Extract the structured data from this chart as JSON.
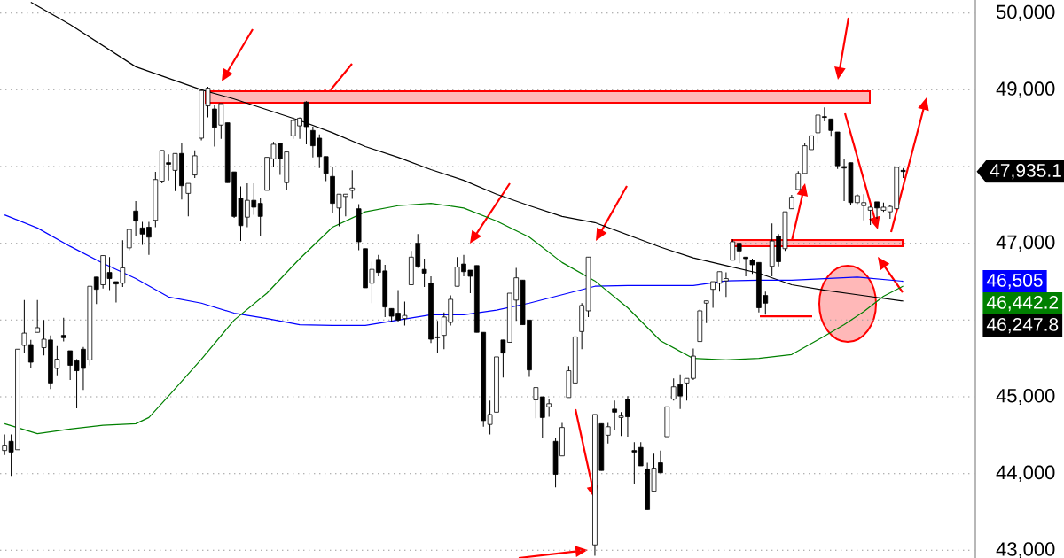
{
  "chart_data": {
    "type": "candlestick",
    "categories": [
      null,
      null,
      null,
      null,
      null,
      null,
      null,
      null,
      null,
      null,
      null,
      null,
      null,
      null,
      null,
      null,
      null,
      null,
      null,
      null,
      null,
      null,
      null,
      null,
      null,
      null,
      null,
      null,
      null,
      null,
      null,
      null,
      null,
      null,
      null,
      null,
      null,
      null,
      null,
      null,
      null,
      null,
      null,
      null,
      null,
      null,
      null,
      null,
      null,
      null,
      null,
      null,
      null,
      null,
      null,
      null,
      null,
      null,
      null,
      null,
      null,
      null,
      null,
      null,
      null,
      null,
      null,
      null,
      null,
      null,
      null,
      null,
      null,
      null,
      null,
      null,
      null,
      null,
      null,
      null,
      null,
      null,
      null,
      null,
      null,
      null,
      null,
      null,
      null,
      null,
      null,
      null,
      null,
      null,
      null,
      null,
      null,
      null,
      null,
      null,
      null,
      null,
      null,
      null,
      null,
      null,
      null,
      null,
      null,
      null,
      null,
      null,
      null,
      null,
      null,
      null,
      null,
      null,
      null,
      null,
      null,
      null,
      null,
      null,
      null,
      null,
      null,
      null,
      null,
      null,
      null,
      null,
      null,
      null,
      null,
      null,
      null,
      null
    ],
    "ohlc": [
      [
        44300,
        44510,
        44240,
        44370
      ],
      [
        44420,
        44510,
        43970,
        44280
      ],
      [
        44310,
        45620,
        44310,
        45620
      ],
      [
        45670,
        46260,
        45570,
        45830
      ],
      [
        45680,
        45740,
        45370,
        45450
      ],
      [
        45840,
        46260,
        45840,
        45900
      ],
      [
        45640,
        46000,
        45540,
        45750
      ],
      [
        45740,
        45800,
        45100,
        45180
      ],
      [
        45370,
        45660,
        45280,
        45490
      ],
      [
        45800,
        46030,
        45720,
        45770
      ],
      [
        45600,
        45600,
        45220,
        45410
      ],
      [
        45470,
        45490,
        44850,
        45340
      ],
      [
        45620,
        45650,
        45090,
        45370
      ],
      [
        45480,
        46440,
        45410,
        46440
      ],
      [
        46560,
        46560,
        46210,
        46400
      ],
      [
        46460,
        46840,
        46410,
        46840
      ],
      [
        46620,
        46820,
        46390,
        46540
      ],
      [
        46500,
        46500,
        46230,
        46470
      ],
      [
        46480,
        47040,
        46430,
        46680
      ],
      [
        46940,
        47180,
        46910,
        47180
      ],
      [
        47420,
        47550,
        47100,
        47290
      ],
      [
        47200,
        47280,
        46980,
        47120
      ],
      [
        47210,
        47280,
        46850,
        47080
      ],
      [
        47300,
        47930,
        47210,
        47830
      ],
      [
        47810,
        48210,
        47780,
        48210
      ],
      [
        48050,
        48160,
        47820,
        48030
      ],
      [
        47950,
        48170,
        47680,
        48170
      ],
      [
        48170,
        48300,
        47570,
        47750
      ],
      [
        47650,
        47780,
        47350,
        47780
      ],
      [
        47890,
        48210,
        47850,
        48140
      ],
      [
        48370,
        48990,
        48340,
        48990
      ],
      [
        48790,
        49040,
        48640,
        49020
      ],
      [
        48750,
        48800,
        48260,
        48510
      ],
      [
        48540,
        48820,
        48360,
        48820
      ],
      [
        48570,
        48570,
        47790,
        47790
      ],
      [
        47930,
        47930,
        47330,
        47350
      ],
      [
        47590,
        47740,
        47030,
        47230
      ],
      [
        47340,
        47780,
        47210,
        47560
      ],
      [
        47560,
        47780,
        47370,
        47470
      ],
      [
        47520,
        47590,
        47090,
        47350
      ],
      [
        47690,
        48120,
        47690,
        48120
      ],
      [
        48100,
        48320,
        47990,
        48290
      ],
      [
        48300,
        48300,
        47890,
        48100
      ],
      [
        47790,
        48190,
        47700,
        48190
      ],
      [
        48400,
        48640,
        48360,
        48600
      ],
      [
        48530,
        48640,
        48360,
        48630
      ],
      [
        48840,
        48850,
        48290,
        48520
      ],
      [
        48470,
        48520,
        48120,
        48270
      ],
      [
        48370,
        48420,
        47980,
        48130
      ],
      [
        48130,
        48130,
        47810,
        47910
      ],
      [
        47870,
        47990,
        47400,
        47520
      ],
      [
        47460,
        47640,
        47220,
        47640
      ],
      [
        47610,
        47640,
        47350,
        47640
      ],
      [
        47690,
        47950,
        47580,
        47720
      ],
      [
        47450,
        47510,
        46910,
        47020
      ],
      [
        46930,
        46930,
        46420,
        46420
      ],
      [
        46480,
        46760,
        46220,
        46660
      ],
      [
        46790,
        46850,
        46570,
        46620
      ],
      [
        46640,
        46720,
        46040,
        46170
      ],
      [
        46150,
        46150,
        45970,
        46050
      ],
      [
        46090,
        46390,
        45970,
        46000
      ],
      [
        46020,
        46240,
        45930,
        46060
      ],
      [
        46460,
        46900,
        46460,
        46820
      ],
      [
        47000,
        47120,
        46680,
        46700
      ],
      [
        46660,
        46800,
        46430,
        46610
      ],
      [
        46480,
        46570,
        45700,
        45750
      ],
      [
        45780,
        45990,
        45570,
        45770
      ],
      [
        45800,
        46100,
        45620,
        46040
      ],
      [
        45970,
        46320,
        45930,
        46270
      ],
      [
        46440,
        46820,
        46440,
        46690
      ],
      [
        46730,
        46850,
        46570,
        46630
      ],
      [
        46650,
        46650,
        46350,
        46570
      ],
      [
        46710,
        46710,
        45840,
        45840
      ],
      [
        45840,
        45840,
        44610,
        44690
      ],
      [
        44640,
        44950,
        44510,
        44770
      ],
      [
        44800,
        45520,
        44800,
        45520
      ],
      [
        45740,
        45740,
        45250,
        45570
      ],
      [
        45710,
        46350,
        45710,
        46350
      ],
      [
        46260,
        46680,
        45990,
        46550
      ],
      [
        46520,
        46520,
        45940,
        45940
      ],
      [
        46000,
        46000,
        45260,
        45350
      ],
      [
        44960,
        45120,
        44720,
        45120
      ],
      [
        45000,
        45000,
        44460,
        44730
      ],
      [
        44870,
        44970,
        44740,
        44910
      ],
      [
        44420,
        44470,
        43820,
        43990
      ],
      [
        44230,
        44660,
        44230,
        44600
      ],
      [
        44990,
        45400,
        44990,
        45340
      ],
      [
        45180,
        45780,
        45180,
        45780
      ],
      [
        45850,
        46220,
        45620,
        46190
      ],
      [
        46120,
        46820,
        46040,
        46820
      ],
      [
        43070,
        44770,
        42930,
        44770
      ],
      [
        44650,
        44650,
        44040,
        44040
      ],
      [
        44500,
        44660,
        44390,
        44610
      ],
      [
        44840,
        44950,
        44570,
        44800
      ],
      [
        44730,
        44800,
        44490,
        44750
      ],
      [
        44970,
        45010,
        44480,
        44740
      ],
      [
        44300,
        44410,
        43860,
        44280
      ],
      [
        44340,
        44410,
        44100,
        44100
      ],
      [
        44060,
        44140,
        43530,
        43530
      ],
      [
        43770,
        44260,
        43770,
        44070
      ],
      [
        44140,
        44300,
        44010,
        44010
      ],
      [
        44480,
        44870,
        44480,
        44870
      ],
      [
        44970,
        45240,
        44950,
        45130
      ],
      [
        45160,
        45290,
        44840,
        45010
      ],
      [
        45180,
        45240,
        44950,
        45240
      ],
      [
        45240,
        45630,
        45220,
        45530
      ],
      [
        45720,
        46140,
        45720,
        46120
      ],
      [
        46220,
        46250,
        45960,
        46250
      ],
      [
        46400,
        46500,
        46160,
        46500
      ],
      [
        46480,
        46630,
        46370,
        46630
      ],
      [
        46510,
        46620,
        46300,
        46540
      ],
      [
        46780,
        47050,
        46780,
        47020
      ],
      [
        47000,
        47000,
        46740,
        46900
      ],
      [
        46820,
        46820,
        46570,
        46800
      ],
      [
        46780,
        46800,
        46600,
        46720
      ],
      [
        46750,
        46750,
        46100,
        46160
      ],
      [
        46320,
        46370,
        46070,
        46220
      ],
      [
        46700,
        47260,
        46570,
        47030
      ],
      [
        47090,
        47120,
        46700,
        46760
      ],
      [
        46930,
        47410,
        46900,
        47410
      ],
      [
        47450,
        47630,
        47450,
        47600
      ],
      [
        47700,
        47940,
        47700,
        47910
      ],
      [
        47910,
        48300,
        47910,
        48270
      ],
      [
        48220,
        48400,
        48220,
        48400
      ],
      [
        48440,
        48670,
        48300,
        48670
      ],
      [
        48650,
        48770,
        48590,
        48640
      ],
      [
        48620,
        48620,
        48390,
        48470
      ],
      [
        48450,
        48450,
        47970,
        48010
      ],
      [
        48000,
        48100,
        47550,
        47980
      ],
      [
        48050,
        48050,
        47500,
        47530
      ],
      [
        47530,
        47640,
        47510,
        47620
      ],
      [
        47490,
        47640,
        47300,
        47530
      ],
      [
        47430,
        47490,
        47240,
        47470
      ],
      [
        47540,
        47540,
        47320,
        47460
      ],
      [
        47430,
        47530,
        47410,
        47470
      ],
      [
        47410,
        47500,
        47320,
        47480
      ],
      [
        47450,
        48000,
        47450,
        47990
      ],
      [
        47950,
        47980,
        47850,
        47935.1
      ]
    ],
    "ylim": [
      42900,
      50170
    ],
    "yticks": [
      {
        "value": 43000,
        "label": "43,000"
      },
      {
        "value": 44000,
        "label": "44,000"
      },
      {
        "value": 45000,
        "label": "45,000"
      },
      {
        "value": 46000,
        "label": null
      },
      {
        "value": 47000,
        "label": "47,000"
      },
      {
        "value": 48000,
        "label": null
      },
      {
        "value": 49000,
        "label": "49,000"
      },
      {
        "value": 50000,
        "label": "50,000"
      }
    ],
    "grid": "y",
    "series": [
      {
        "type": "line",
        "color": "#000000",
        "values": [
          null,
          null,
          null,
          null,
          50140,
          null,
          null,
          null,
          null,
          null,
          49850,
          null,
          null,
          null,
          null,
          null,
          null,
          null,
          null,
          null,
          49300,
          null,
          null,
          null,
          null,
          null,
          null,
          null,
          null,
          null,
          49000,
          null,
          null,
          null,
          null,
          48880,
          null,
          null,
          null,
          null,
          48740,
          null,
          null,
          null,
          null,
          48600,
          null,
          null,
          null,
          null,
          48440,
          null,
          null,
          null,
          null,
          48260,
          null,
          null,
          null,
          null,
          48120,
          null,
          null,
          null,
          null,
          47960,
          null,
          null,
          null,
          null,
          47820,
          null,
          null,
          null,
          null,
          47640,
          null,
          null,
          null,
          null,
          47490,
          null,
          null,
          null,
          null,
          47350,
          null,
          null,
          null,
          null,
          47270,
          null,
          null,
          null,
          null,
          47110,
          null,
          null,
          null,
          null,
          46950,
          null,
          null,
          null,
          null,
          46810,
          null,
          null,
          null,
          null,
          46710,
          null,
          null,
          null,
          null,
          46610,
          null,
          null,
          null,
          null,
          46460,
          null,
          null,
          null,
          null,
          46390,
          null,
          null,
          null,
          null,
          46330,
          null,
          null,
          null,
          null,
          null,
          null,
          46247.8
        ]
      },
      {
        "type": "line",
        "color": "#0000ff",
        "values": [
          47370,
          null,
          null,
          null,
          null,
          47200,
          null,
          null,
          null,
          null,
          46960,
          null,
          null,
          null,
          null,
          46740,
          null,
          null,
          null,
          null,
          46540,
          null,
          null,
          null,
          null,
          46300,
          null,
          null,
          null,
          null,
          46220,
          null,
          null,
          null,
          null,
          46090,
          null,
          null,
          null,
          null,
          46020,
          null,
          null,
          null,
          null,
          45940,
          null,
          null,
          null,
          null,
          45930,
          null,
          null,
          null,
          null,
          45930,
          null,
          null,
          null,
          null,
          46000,
          null,
          null,
          null,
          null,
          46070,
          null,
          null,
          null,
          null,
          46070,
          null,
          null,
          null,
          null,
          46130,
          null,
          null,
          null,
          null,
          46220,
          null,
          null,
          null,
          null,
          46330,
          null,
          null,
          null,
          null,
          46440,
          null,
          null,
          null,
          null,
          46450,
          null,
          null,
          null,
          null,
          46450,
          null,
          null,
          null,
          null,
          46450,
          null,
          null,
          null,
          null,
          46510,
          null,
          null,
          null,
          null,
          46520,
          null,
          null,
          null,
          null,
          46520,
          null,
          null,
          null,
          null,
          46540,
          null,
          null,
          null,
          null,
          46560,
          null,
          null,
          null,
          null,
          null,
          null,
          46505
        ]
      },
      {
        "type": "line",
        "color": "#008000",
        "values": [
          44650,
          null,
          null,
          null,
          null,
          44520,
          null,
          null,
          null,
          null,
          44580,
          null,
          null,
          null,
          null,
          44630,
          null,
          null,
          null,
          null,
          44650,
          null,
          44730,
          null,
          null,
          45010,
          null,
          null,
          null,
          null,
          45490,
          null,
          null,
          null,
          null,
          46000,
          null,
          null,
          null,
          null,
          46350,
          null,
          null,
          null,
          null,
          46800,
          null,
          null,
          null,
          null,
          47210,
          null,
          null,
          null,
          null,
          47410,
          null,
          null,
          null,
          null,
          47490,
          null,
          null,
          null,
          null,
          47520,
          null,
          null,
          null,
          null,
          47460,
          null,
          null,
          null,
          null,
          47290,
          null,
          null,
          null,
          null,
          47080,
          null,
          null,
          null,
          null,
          46750,
          null,
          null,
          null,
          null,
          46510,
          null,
          null,
          null,
          null,
          46160,
          null,
          null,
          null,
          null,
          45730,
          null,
          null,
          null,
          null,
          45500,
          null,
          null,
          null,
          null,
          45480,
          null,
          null,
          null,
          null,
          45500,
          null,
          null,
          null,
          null,
          45550,
          null,
          null,
          null,
          null,
          45790,
          null,
          null,
          45940,
          null,
          null,
          46110,
          null,
          null,
          46310,
          null,
          null,
          46442.2
        ]
      }
    ],
    "annotations": [
      "47,935.1",
      "46,247.8",
      "46,505",
      "46,442.2"
    ]
  }
}
